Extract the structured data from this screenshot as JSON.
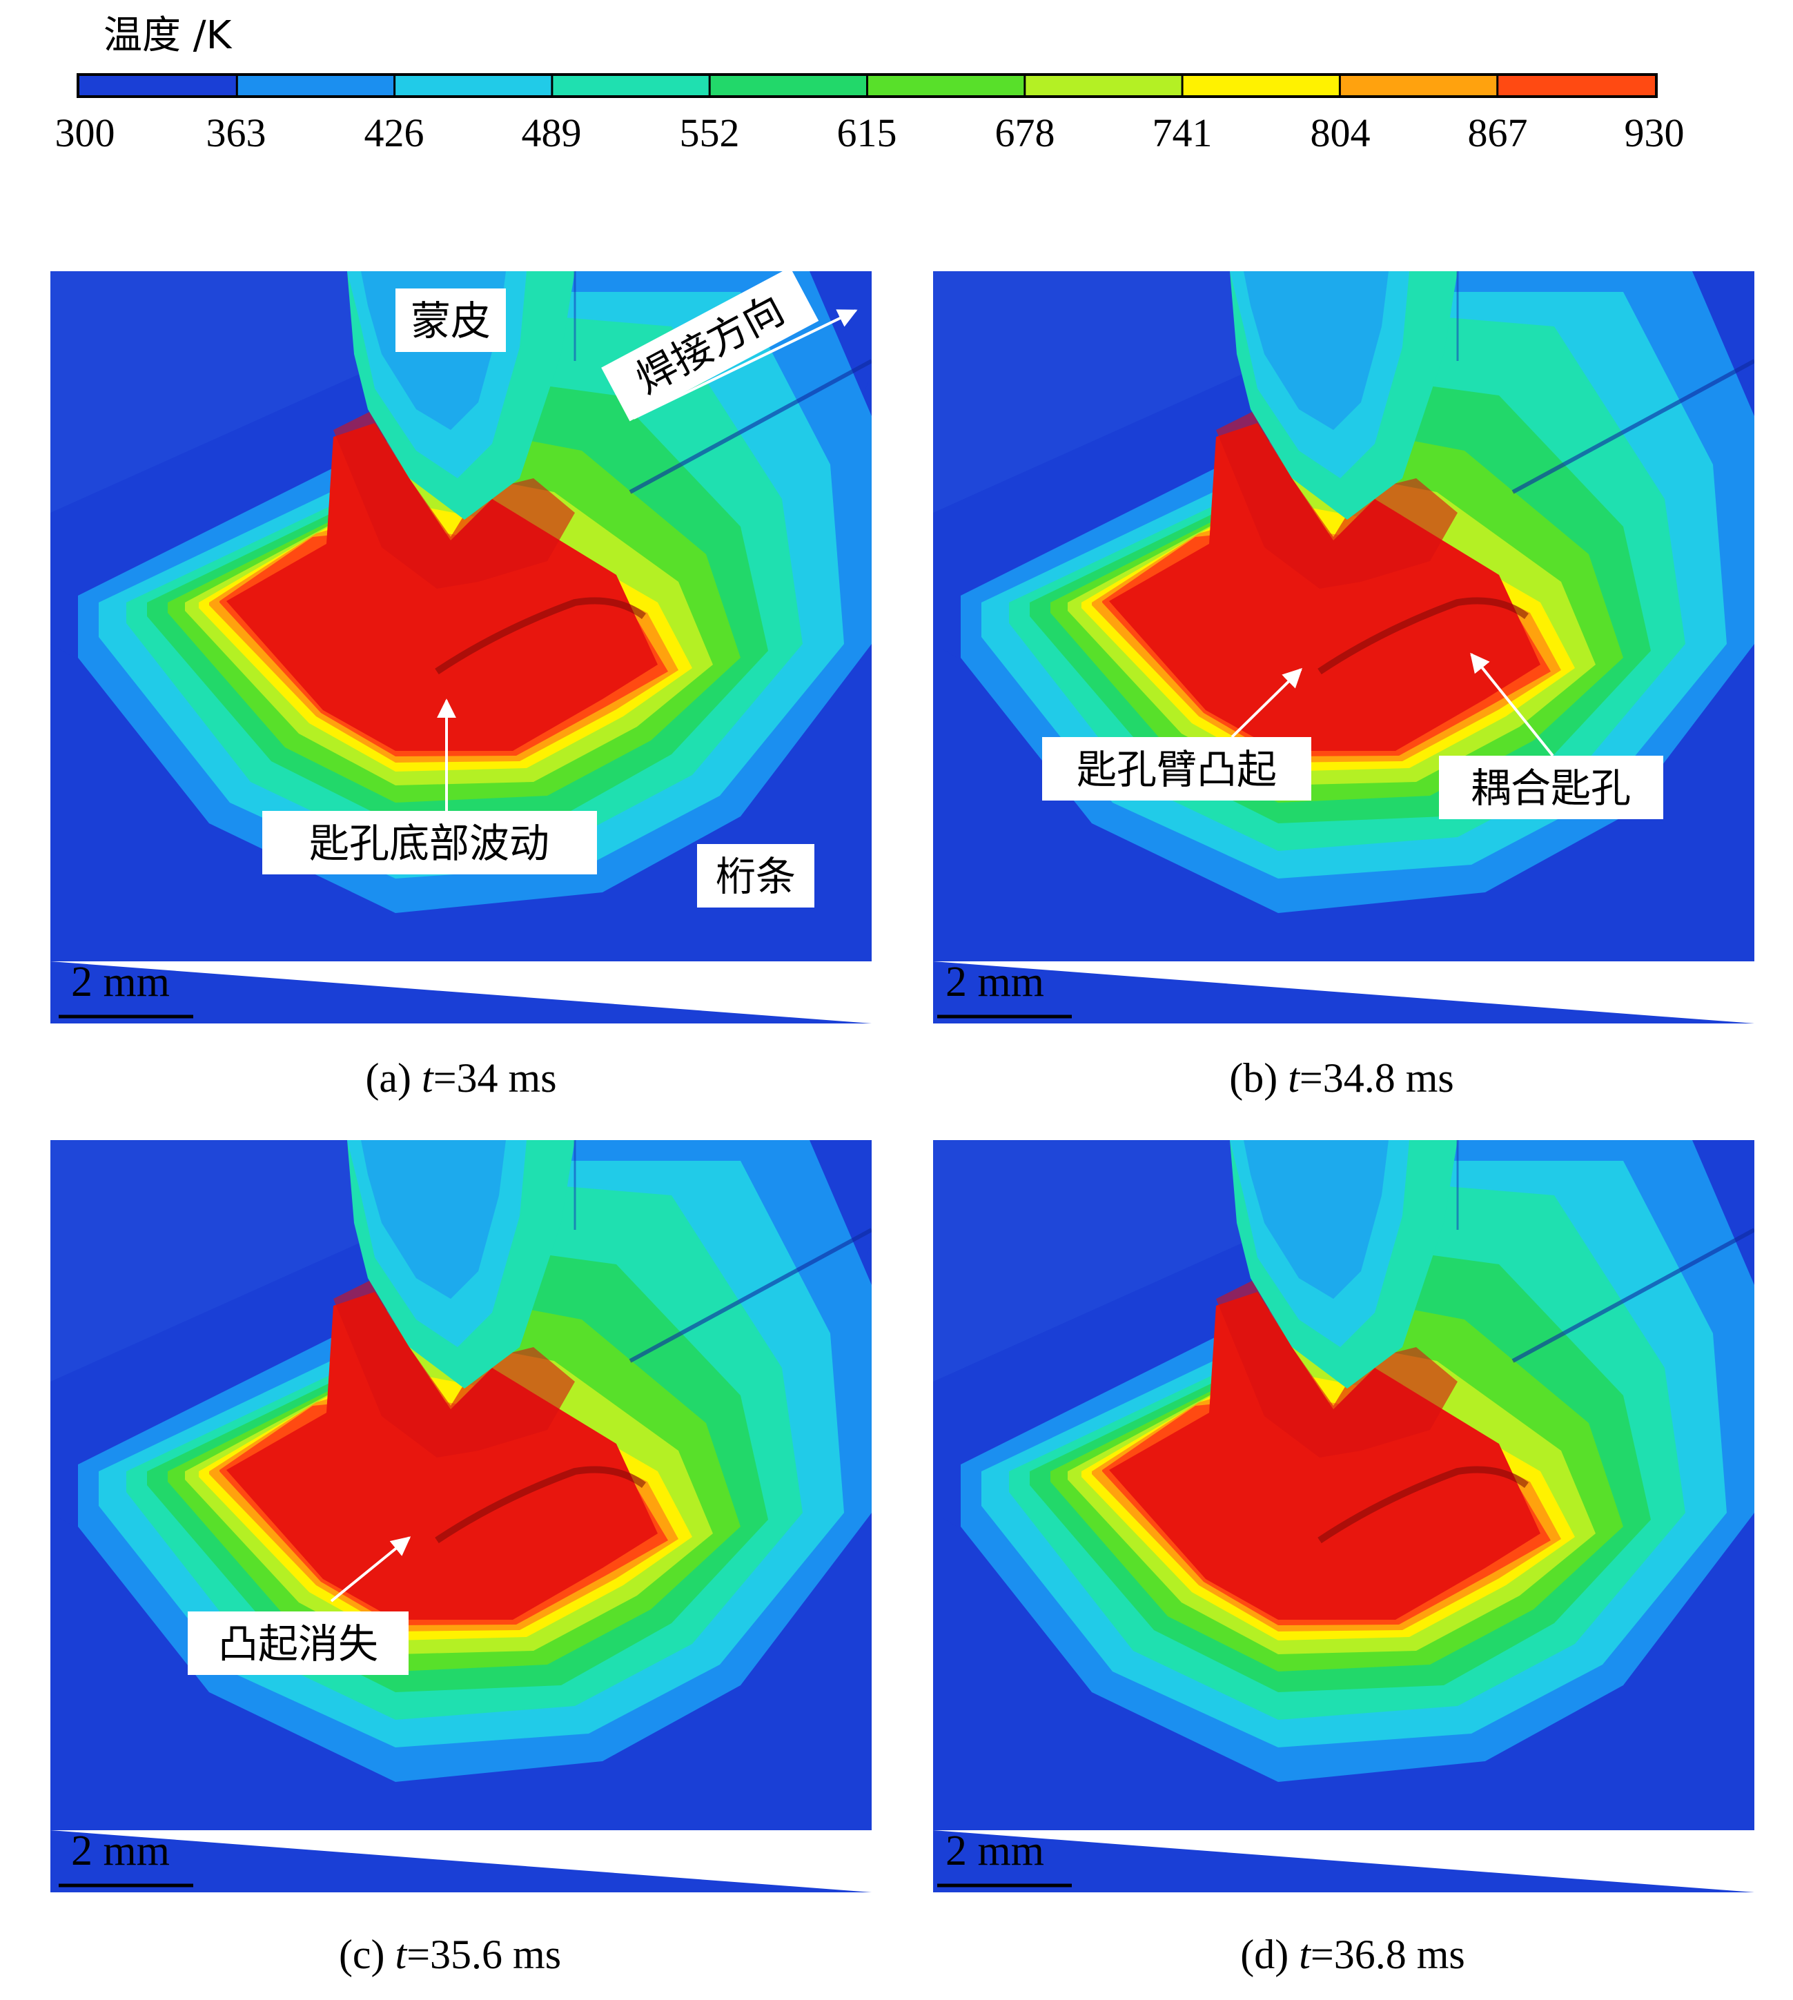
{
  "colorbar": {
    "title": "温度 /K",
    "ticks": [
      "300",
      "363",
      "426",
      "489",
      "552",
      "615",
      "678",
      "741",
      "804",
      "867",
      "930"
    ],
    "colors": [
      "#1a3fd6",
      "#1b8ff0",
      "#21cbe8",
      "#1fe0b0",
      "#22d86a",
      "#58e02a",
      "#b4f024",
      "#fff200",
      "#ffa20e",
      "#ff4a12"
    ]
  },
  "panels": [
    {
      "caption_prefix": "(a) ",
      "caption_var": "t",
      "caption_value": "=34 ms",
      "scale_label": "2 mm",
      "labels": {
        "skin": "蒙皮",
        "direction": "焊接方向",
        "keyhole_bottom": "匙孔底部波动",
        "stringer": "桁条"
      }
    },
    {
      "caption_prefix": "(b) ",
      "caption_var": "t",
      "caption_value": "=34.8 ms",
      "scale_label": "2 mm",
      "labels": {
        "arm_bulge": "匙孔臂凸起",
        "coupled": "耦合匙孔"
      }
    },
    {
      "caption_prefix": "(c) ",
      "caption_var": "t",
      "caption_value": "=35.6 ms",
      "scale_label": "2 mm",
      "labels": {
        "bulge_gone": "凸起消失"
      }
    },
    {
      "caption_prefix": "(d) ",
      "caption_var": "t",
      "caption_value": "=36.8 ms",
      "scale_label": "2 mm",
      "labels": {}
    }
  ]
}
